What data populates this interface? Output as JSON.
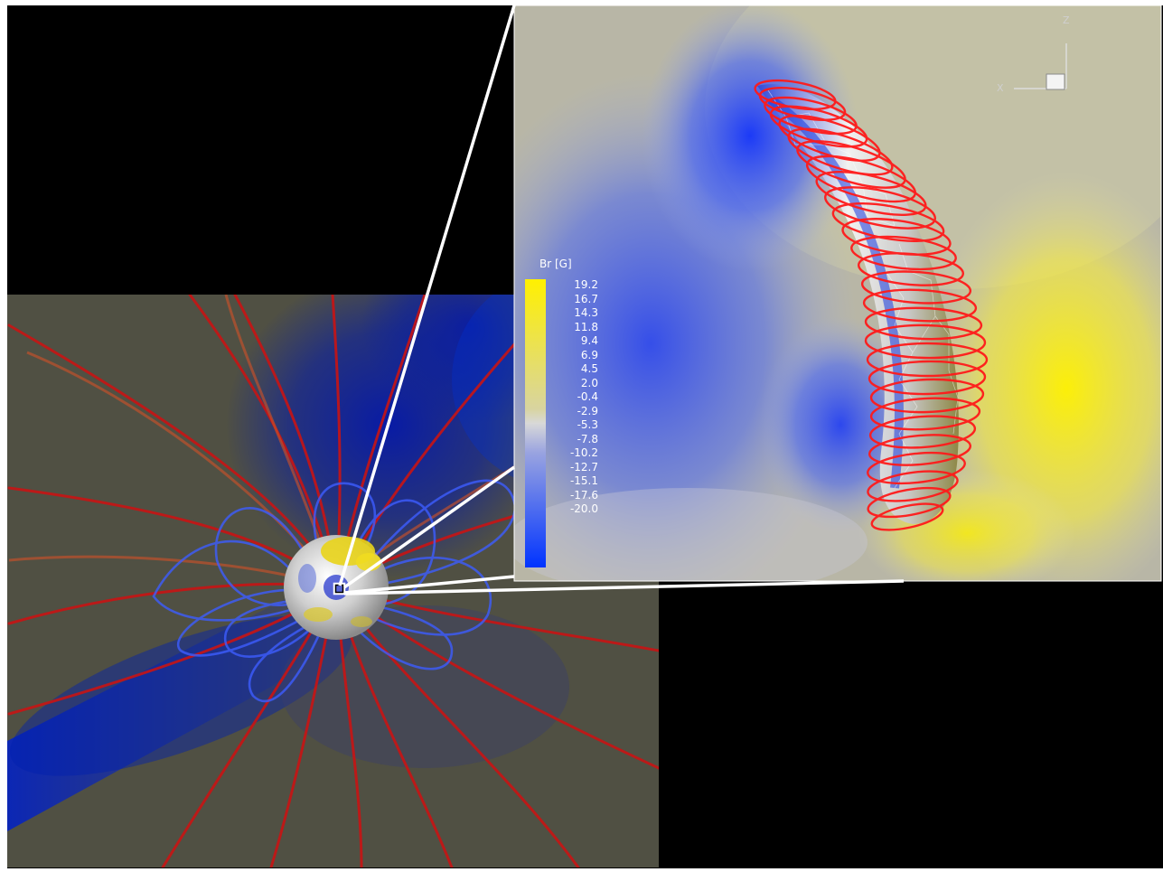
{
  "colorbar": {
    "title": "Br [G]",
    "ticks": [
      "19.2",
      "16.7",
      "14.3",
      "11.8",
      "9.4",
      "6.9",
      "4.5",
      "2.0",
      "-0.4",
      "-2.9",
      "-5.3",
      "-7.8",
      "-10.2",
      "-12.7",
      "-15.1",
      "-17.6",
      "-20.0"
    ],
    "colors": {
      "high": "#fff000",
      "mid": "#d8d8d8",
      "low": "#0033ff"
    }
  },
  "axes_triad": {
    "vertical": "Z",
    "horizontal": "X"
  },
  "colors": {
    "field_line_open": "#cc1010",
    "field_line_closed": "#3a5cff",
    "flux_rope": "#ff1a1a",
    "background": "#000000"
  }
}
